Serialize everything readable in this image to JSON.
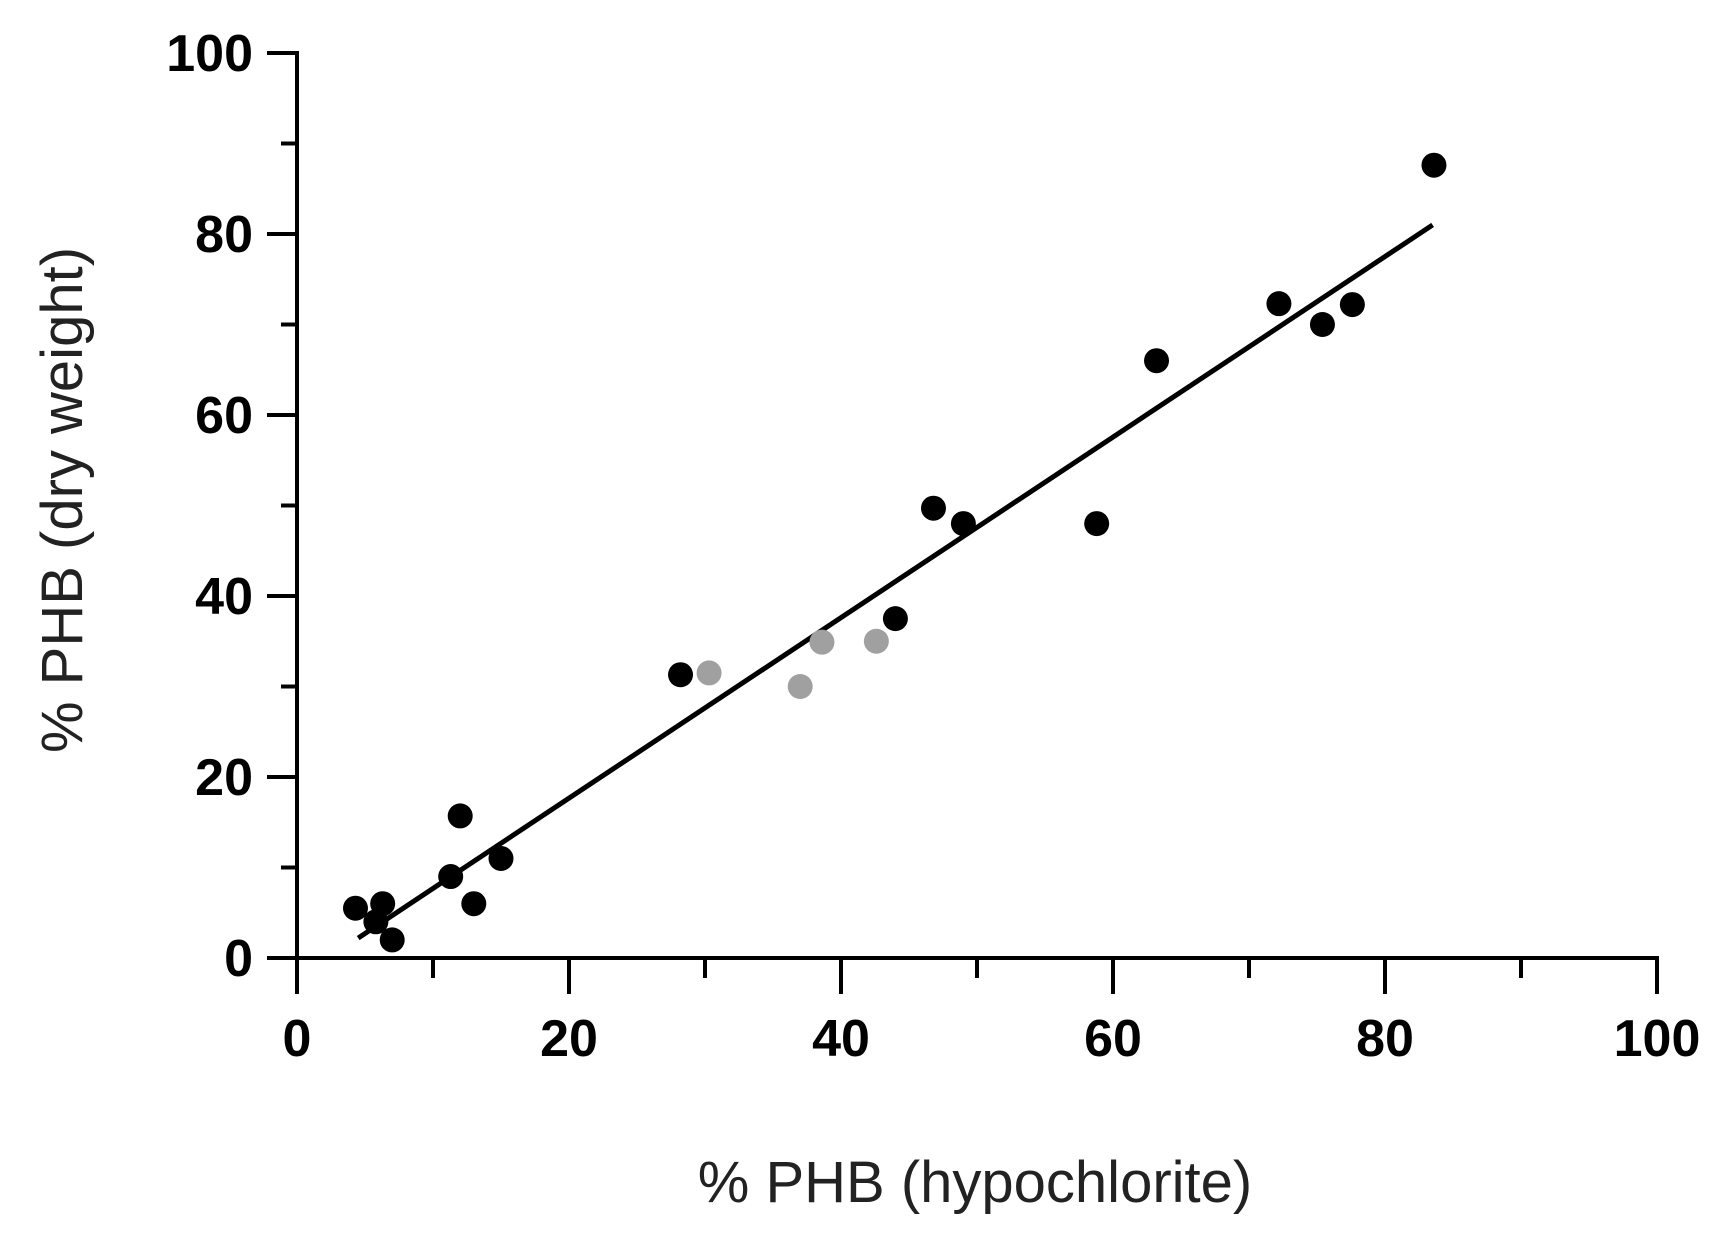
{
  "chart_data": {
    "type": "scatter",
    "title": "",
    "xlabel": "% PHB (hypochlorite)",
    "ylabel": "% PHB (dry weight)",
    "xlim": [
      0,
      100
    ],
    "ylim": [
      0,
      100
    ],
    "x_ticks": [
      0,
      20,
      40,
      60,
      80,
      100
    ],
    "y_ticks": [
      0,
      20,
      40,
      60,
      80,
      100
    ],
    "x_minor_ticks": [
      10,
      30,
      50,
      70,
      90
    ],
    "y_minor_ticks": [
      10,
      30,
      50,
      70,
      90
    ],
    "grid": false,
    "legend": "none",
    "series": [
      {
        "color": "#000000",
        "points": [
          {
            "x": 4.3,
            "y": 5.5
          },
          {
            "x": 6.3,
            "y": 6.0
          },
          {
            "x": 5.8,
            "y": 4.0
          },
          {
            "x": 7.0,
            "y": 2.0
          },
          {
            "x": 11.3,
            "y": 9.0
          },
          {
            "x": 12.0,
            "y": 15.7
          },
          {
            "x": 13.0,
            "y": 6.0
          },
          {
            "x": 15.0,
            "y": 11.0
          },
          {
            "x": 28.2,
            "y": 31.3
          },
          {
            "x": 44.0,
            "y": 37.5
          },
          {
            "x": 46.8,
            "y": 49.7
          },
          {
            "x": 49.0,
            "y": 48.0
          },
          {
            "x": 58.8,
            "y": 48.0
          },
          {
            "x": 63.2,
            "y": 66.0
          },
          {
            "x": 72.2,
            "y": 72.3
          },
          {
            "x": 75.4,
            "y": 70.0
          },
          {
            "x": 77.6,
            "y": 72.2
          },
          {
            "x": 83.6,
            "y": 87.6
          }
        ]
      },
      {
        "color": "#a0a0a0",
        "points": [
          {
            "x": 30.3,
            "y": 31.5
          },
          {
            "x": 37.0,
            "y": 30.0
          },
          {
            "x": 38.6,
            "y": 34.9
          },
          {
            "x": 42.6,
            "y": 35.0
          }
        ]
      }
    ],
    "fit_line": {
      "type": "linear",
      "color": "#000000",
      "x_start": 4.5,
      "y_start": 2.2,
      "x_end": 83.5,
      "y_end": 81.0
    }
  }
}
